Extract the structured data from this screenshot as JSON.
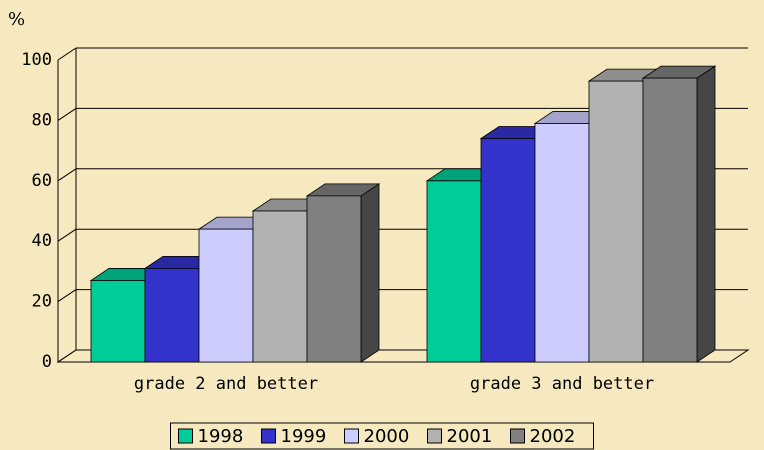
{
  "chart_data": {
    "type": "bar3d",
    "ylabel": "%",
    "categories": [
      "grade 2 and better",
      "grade 3 and better"
    ],
    "series": [
      {
        "name": "1998",
        "color": "#00cc99",
        "values": [
          27,
          60
        ]
      },
      {
        "name": "1999",
        "color": "#3333cc",
        "values": [
          31,
          74
        ]
      },
      {
        "name": "2000",
        "color": "#ccccff",
        "values": [
          44,
          79
        ]
      },
      {
        "name": "2001",
        "color": "#b2b2b2",
        "values": [
          50,
          93
        ]
      },
      {
        "name": "2002",
        "color": "#808080",
        "values": [
          55,
          94
        ]
      }
    ],
    "ylim": [
      0,
      100
    ],
    "yticks": [
      0,
      20,
      40,
      60,
      80,
      100
    ],
    "grid": true,
    "legend": "bottom"
  }
}
